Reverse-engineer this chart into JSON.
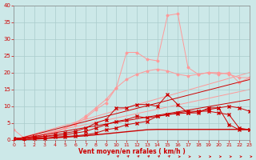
{
  "x": [
    0,
    1,
    2,
    3,
    4,
    5,
    6,
    7,
    8,
    9,
    10,
    11,
    12,
    13,
    14,
    15,
    16,
    17,
    18,
    19,
    20,
    21,
    22,
    23
  ],
  "line_spike_light": [
    3.0,
    0.5,
    0.5,
    1.0,
    2.0,
    3.5,
    4.5,
    6.5,
    9.0,
    11.0,
    15.5,
    26.0,
    26.0,
    24.0,
    23.5,
    37.0,
    37.5,
    21.5,
    19.5,
    20.0,
    19.5,
    20.0,
    17.0,
    18.5
  ],
  "line_smooth_light": [
    0.5,
    0.5,
    1.0,
    1.5,
    2.5,
    3.5,
    5.0,
    7.0,
    9.5,
    12.0,
    15.5,
    18.0,
    19.5,
    20.5,
    21.0,
    20.5,
    19.5,
    19.0,
    19.5,
    20.0,
    20.0,
    19.5,
    18.5,
    18.5
  ],
  "line_straight_light1": [
    0.0,
    0.87,
    1.74,
    2.61,
    3.48,
    4.35,
    5.22,
    6.09,
    6.96,
    7.83,
    8.7,
    9.57,
    10.44,
    11.31,
    12.18,
    13.05,
    13.92,
    14.79,
    15.66,
    16.53,
    17.4,
    18.27,
    19.14,
    20.0
  ],
  "line_straight_light2": [
    0.0,
    0.65,
    1.3,
    1.96,
    2.6,
    3.25,
    3.9,
    4.55,
    5.2,
    5.85,
    6.5,
    7.15,
    7.8,
    8.45,
    9.1,
    9.75,
    10.4,
    11.05,
    11.7,
    12.35,
    13.0,
    13.65,
    14.3,
    14.96
  ],
  "line_marked1": [
    0.5,
    0.5,
    0.8,
    1.0,
    1.5,
    2.0,
    2.5,
    3.5,
    5.0,
    6.0,
    9.5,
    9.5,
    10.5,
    10.5,
    10.0,
    13.5,
    10.5,
    8.0,
    8.5,
    8.5,
    8.0,
    7.5,
    3.5,
    3.0
  ],
  "line_marked2": [
    0.5,
    0.5,
    0.8,
    1.0,
    1.2,
    1.5,
    2.0,
    2.5,
    3.5,
    4.5,
    5.5,
    6.0,
    7.0,
    6.5,
    7.0,
    7.5,
    7.8,
    8.0,
    8.0,
    9.5,
    9.5,
    4.5,
    3.0,
    3.0
  ],
  "line_marked3": [
    0.0,
    0.0,
    0.5,
    0.5,
    0.8,
    1.0,
    1.2,
    1.5,
    2.0,
    3.0,
    3.5,
    4.5,
    5.0,
    5.5,
    7.0,
    7.5,
    8.0,
    8.5,
    8.5,
    9.0,
    9.5,
    10.0,
    9.5,
    8.5
  ],
  "line_straight_dark1": [
    0.0,
    0.78,
    1.56,
    2.34,
    3.12,
    3.9,
    4.68,
    5.46,
    6.24,
    7.02,
    7.8,
    8.58,
    9.36,
    10.14,
    10.92,
    11.7,
    12.48,
    13.26,
    14.04,
    14.82,
    15.6,
    16.38,
    17.16,
    17.9
  ],
  "line_straight_dark2": [
    0.0,
    0.52,
    1.04,
    1.56,
    2.08,
    2.6,
    3.12,
    3.64,
    4.16,
    4.68,
    5.2,
    5.72,
    6.24,
    6.76,
    7.28,
    7.8,
    8.32,
    8.84,
    9.36,
    9.88,
    10.4,
    10.92,
    11.44,
    11.96
  ],
  "line_flat_dark": [
    0.0,
    0.1,
    0.2,
    0.4,
    0.6,
    0.8,
    1.0,
    1.2,
    1.5,
    1.8,
    2.1,
    2.4,
    2.7,
    3.0,
    3.1,
    3.1,
    3.1,
    3.1,
    3.1,
    3.1,
    3.1,
    3.1,
    3.1,
    3.1
  ],
  "arrows": {
    "diagonal_x": [
      10,
      11,
      12,
      13,
      14,
      15
    ],
    "horizontal_x": [
      16,
      17,
      18,
      19,
      20,
      21,
      22,
      23
    ]
  },
  "bg_color": "#cce8e8",
  "grid_color": "#aacccc",
  "line_color_dark": "#cc0000",
  "line_color_light": "#ff9999",
  "xlabel": "Vent moyen/en rafales ( km/h )",
  "xlim": [
    0,
    23
  ],
  "ylim": [
    0,
    40
  ],
  "yticks": [
    0,
    5,
    10,
    15,
    20,
    25,
    30,
    35,
    40
  ],
  "xticks": [
    0,
    1,
    2,
    3,
    4,
    5,
    6,
    7,
    8,
    9,
    10,
    11,
    12,
    13,
    14,
    15,
    16,
    17,
    18,
    19,
    20,
    21,
    22,
    23
  ]
}
